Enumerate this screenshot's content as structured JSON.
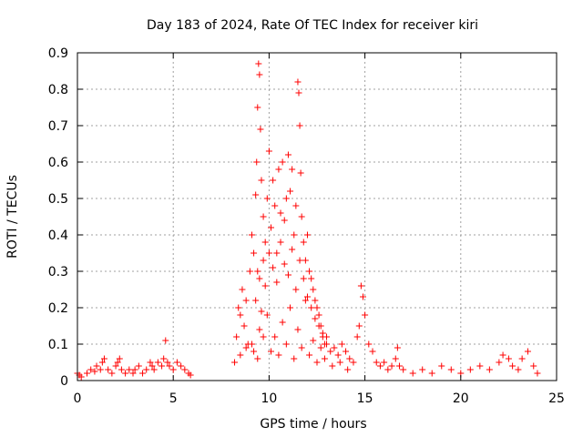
{
  "chart_data": {
    "type": "scatter",
    "title": "Day 183 of 2024, Rate Of TEC Index for receiver kiri",
    "xlabel": "GPS time / hours",
    "ylabel": "ROTI / TECUs",
    "xlim": [
      0,
      25
    ],
    "ylim": [
      0,
      0.9
    ],
    "xticks": [
      "0",
      "5",
      "10",
      "15",
      "20",
      "25"
    ],
    "yticks": [
      "0",
      "0.1",
      "0.2",
      "0.3",
      "0.4",
      "0.5",
      "0.6",
      "0.7",
      "0.8",
      "0.9"
    ],
    "grid": true,
    "marker": "+",
    "marker_color": "#ff0000",
    "series": [
      {
        "name": "ROTI",
        "x": [
          0.0,
          0.1,
          0.2,
          0.5,
          0.7,
          0.9,
          1.0,
          1.2,
          1.3,
          1.4,
          1.6,
          1.8,
          2.0,
          2.1,
          2.2,
          2.3,
          2.5,
          2.7,
          2.9,
          3.0,
          3.2,
          3.4,
          3.6,
          3.8,
          3.9,
          4.0,
          4.2,
          4.4,
          4.5,
          4.6,
          4.7,
          4.8,
          5.0,
          5.2,
          5.4,
          5.6,
          5.8,
          5.9,
          8.2,
          8.3,
          8.4,
          8.5,
          8.6,
          8.7,
          8.8,
          8.9,
          9.0,
          9.1,
          9.2,
          9.3,
          9.35,
          9.4,
          9.45,
          9.5,
          9.55,
          9.6,
          9.7,
          9.8,
          9.9,
          10.0,
          10.1,
          10.2,
          10.3,
          10.4,
          10.5,
          10.6,
          10.7,
          10.8,
          10.9,
          11.0,
          11.1,
          11.2,
          11.3,
          11.4,
          11.5,
          11.55,
          11.6,
          11.65,
          11.7,
          11.8,
          11.9,
          12.0,
          12.1,
          12.2,
          12.3,
          12.4,
          12.5,
          12.6,
          12.7,
          12.8,
          12.9,
          13.0,
          13.2,
          13.4,
          13.6,
          13.8,
          14.0,
          14.2,
          14.4,
          14.6,
          14.7,
          14.8,
          14.9,
          15.0,
          15.2,
          15.4,
          15.6,
          15.8,
          16.0,
          16.2,
          16.4,
          16.6,
          16.7,
          16.8,
          17.0,
          17.5,
          18.0,
          18.5,
          19.0,
          19.5,
          20.0,
          20.5,
          21.0,
          21.5,
          22.0,
          22.2,
          22.5,
          22.7,
          23.0,
          23.2,
          23.5,
          23.8,
          24.0,
          9.3,
          9.4,
          9.5,
          9.6,
          9.7,
          9.8,
          10.0,
          10.2,
          10.4,
          10.6,
          10.8,
          11.0,
          11.2,
          11.4,
          11.6,
          11.8,
          12.0,
          12.2,
          12.4,
          12.6,
          12.8,
          13.0,
          9.2,
          9.5,
          9.9,
          10.3,
          10.7,
          11.1,
          11.5,
          11.9,
          12.3,
          12.7,
          8.5,
          8.8,
          9.1,
          9.4,
          9.7,
          10.1,
          10.5,
          10.9,
          11.3,
          11.7,
          12.1,
          12.5,
          12.9,
          13.3,
          13.7,
          14.1
        ],
        "y": [
          0.02,
          0.015,
          0.01,
          0.02,
          0.03,
          0.025,
          0.04,
          0.03,
          0.05,
          0.06,
          0.03,
          0.02,
          0.04,
          0.05,
          0.06,
          0.03,
          0.02,
          0.03,
          0.02,
          0.03,
          0.04,
          0.02,
          0.03,
          0.05,
          0.04,
          0.03,
          0.05,
          0.04,
          0.06,
          0.11,
          0.05,
          0.04,
          0.03,
          0.05,
          0.04,
          0.03,
          0.02,
          0.015,
          0.05,
          0.12,
          0.2,
          0.18,
          0.25,
          0.15,
          0.22,
          0.1,
          0.3,
          0.4,
          0.35,
          0.51,
          0.6,
          0.75,
          0.87,
          0.84,
          0.69,
          0.55,
          0.45,
          0.38,
          0.5,
          0.63,
          0.42,
          0.55,
          0.48,
          0.35,
          0.58,
          0.46,
          0.6,
          0.44,
          0.5,
          0.62,
          0.52,
          0.58,
          0.4,
          0.48,
          0.82,
          0.79,
          0.7,
          0.57,
          0.45,
          0.38,
          0.33,
          0.4,
          0.3,
          0.28,
          0.25,
          0.22,
          0.2,
          0.18,
          0.15,
          0.13,
          0.1,
          0.12,
          0.08,
          0.09,
          0.07,
          0.1,
          0.08,
          0.06,
          0.05,
          0.12,
          0.15,
          0.26,
          0.23,
          0.18,
          0.1,
          0.08,
          0.05,
          0.04,
          0.05,
          0.03,
          0.04,
          0.06,
          0.09,
          0.04,
          0.03,
          0.02,
          0.03,
          0.02,
          0.04,
          0.03,
          0.02,
          0.03,
          0.04,
          0.03,
          0.05,
          0.07,
          0.06,
          0.04,
          0.03,
          0.06,
          0.08,
          0.04,
          0.02,
          0.22,
          0.3,
          0.28,
          0.19,
          0.33,
          0.26,
          0.35,
          0.31,
          0.27,
          0.38,
          0.32,
          0.29,
          0.36,
          0.25,
          0.33,
          0.28,
          0.23,
          0.2,
          0.17,
          0.15,
          0.12,
          0.1,
          0.08,
          0.14,
          0.18,
          0.12,
          0.16,
          0.2,
          0.14,
          0.22,
          0.11,
          0.09,
          0.07,
          0.09,
          0.1,
          0.06,
          0.12,
          0.08,
          0.07,
          0.1,
          0.06,
          0.09,
          0.07,
          0.05,
          0.06,
          0.04,
          0.05,
          0.03
        ]
      }
    ]
  }
}
